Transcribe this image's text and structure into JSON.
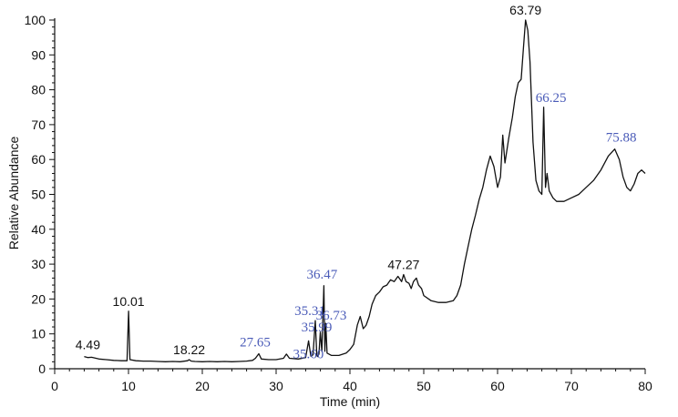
{
  "chart_data": {
    "type": "line",
    "xlabel": "Time (min)",
    "ylabel": "Relative Abundance",
    "xlim": [
      0,
      80
    ],
    "ylim": [
      0,
      100
    ],
    "x_ticks": [
      0,
      10,
      20,
      30,
      40,
      50,
      60,
      70,
      80
    ],
    "y_ticks": [
      0,
      10,
      20,
      30,
      40,
      50,
      60,
      70,
      80,
      90,
      100
    ],
    "grid": false,
    "line_color": "#111111",
    "series": [
      {
        "points": [
          [
            4.0,
            3.5
          ],
          [
            4.5,
            3.2
          ],
          [
            5.0,
            3.3
          ],
          [
            6.0,
            2.8
          ],
          [
            7.0,
            2.6
          ],
          [
            8.0,
            2.4
          ],
          [
            9.0,
            2.3
          ],
          [
            9.8,
            2.3
          ],
          [
            10.01,
            16.5
          ],
          [
            10.2,
            2.6
          ],
          [
            11.0,
            2.3
          ],
          [
            12.0,
            2.2
          ],
          [
            13.0,
            2.2
          ],
          [
            14.0,
            2.1
          ],
          [
            15.0,
            2.0
          ],
          [
            16.0,
            2.1
          ],
          [
            17.0,
            2.0
          ],
          [
            18.0,
            2.3
          ],
          [
            18.22,
            2.6
          ],
          [
            18.5,
            2.2
          ],
          [
            19.0,
            2.1
          ],
          [
            20.0,
            2.0
          ],
          [
            21.0,
            2.1
          ],
          [
            22.0,
            2.0
          ],
          [
            23.0,
            2.1
          ],
          [
            24.0,
            2.0
          ],
          [
            25.0,
            2.1
          ],
          [
            26.0,
            2.2
          ],
          [
            26.8,
            2.4
          ],
          [
            27.2,
            3.0
          ],
          [
            27.65,
            4.3
          ],
          [
            28.0,
            2.8
          ],
          [
            29.0,
            2.6
          ],
          [
            30.0,
            2.6
          ],
          [
            31.0,
            3.0
          ],
          [
            31.4,
            4.2
          ],
          [
            31.8,
            3.0
          ],
          [
            33.0,
            2.8
          ],
          [
            34.0,
            3.2
          ],
          [
            34.4,
            8.0
          ],
          [
            34.7,
            3.6
          ],
          [
            35.0,
            4.0
          ],
          [
            35.31,
            13.8
          ],
          [
            35.5,
            4.0
          ],
          [
            35.6,
            3.5
          ],
          [
            35.8,
            4.2
          ],
          [
            35.99,
            10.5
          ],
          [
            36.2,
            5.0
          ],
          [
            36.47,
            23.8
          ],
          [
            36.6,
            5.0
          ],
          [
            36.73,
            13.0
          ],
          [
            36.9,
            4.5
          ],
          [
            37.5,
            3.8
          ],
          [
            38.5,
            3.8
          ],
          [
            39.5,
            4.5
          ],
          [
            40.0,
            5.5
          ],
          [
            40.5,
            7.0
          ],
          [
            41.0,
            12.5
          ],
          [
            41.4,
            15.0
          ],
          [
            41.8,
            11.5
          ],
          [
            42.2,
            12.5
          ],
          [
            42.6,
            15.0
          ],
          [
            43.0,
            18.5
          ],
          [
            43.5,
            21.0
          ],
          [
            44.0,
            22.0
          ],
          [
            44.5,
            23.5
          ],
          [
            45.0,
            24.0
          ],
          [
            45.5,
            25.5
          ],
          [
            46.0,
            25.0
          ],
          [
            46.5,
            26.5
          ],
          [
            47.0,
            25.0
          ],
          [
            47.27,
            27.0
          ],
          [
            47.6,
            25.0
          ],
          [
            48.0,
            24.5
          ],
          [
            48.3,
            23.0
          ],
          [
            48.6,
            25.0
          ],
          [
            49.0,
            26.0
          ],
          [
            49.3,
            24.0
          ],
          [
            49.7,
            23.0
          ],
          [
            50.0,
            21.0
          ],
          [
            51.0,
            19.5
          ],
          [
            52.0,
            19.0
          ],
          [
            53.0,
            19.0
          ],
          [
            54.0,
            19.5
          ],
          [
            54.5,
            21.0
          ],
          [
            55.0,
            24.0
          ],
          [
            55.5,
            30.0
          ],
          [
            56.0,
            35.0
          ],
          [
            56.5,
            40.0
          ],
          [
            57.0,
            44.0
          ],
          [
            57.5,
            48.5
          ],
          [
            58.0,
            52.0
          ],
          [
            58.5,
            57.0
          ],
          [
            59.0,
            61.0
          ],
          [
            59.5,
            58.0
          ],
          [
            60.0,
            52.0
          ],
          [
            60.4,
            55.0
          ],
          [
            60.7,
            67.0
          ],
          [
            61.0,
            59.0
          ],
          [
            61.5,
            66.0
          ],
          [
            62.0,
            72.0
          ],
          [
            62.4,
            78.0
          ],
          [
            62.8,
            82.0
          ],
          [
            63.2,
            83.0
          ],
          [
            63.5,
            92.0
          ],
          [
            63.79,
            100.0
          ],
          [
            64.1,
            97.0
          ],
          [
            64.4,
            88.0
          ],
          [
            64.8,
            65.0
          ],
          [
            65.2,
            54.0
          ],
          [
            65.6,
            51.0
          ],
          [
            66.0,
            50.0
          ],
          [
            66.25,
            75.0
          ],
          [
            66.5,
            52.0
          ],
          [
            66.7,
            56.0
          ],
          [
            67.0,
            51.0
          ],
          [
            67.5,
            49.0
          ],
          [
            68.0,
            48.0
          ],
          [
            69.0,
            48.0
          ],
          [
            70.0,
            49.0
          ],
          [
            71.0,
            50.0
          ],
          [
            72.0,
            52.0
          ],
          [
            73.0,
            54.0
          ],
          [
            74.0,
            57.0
          ],
          [
            75.0,
            61.0
          ],
          [
            75.88,
            63.0
          ],
          [
            76.5,
            60.0
          ],
          [
            77.0,
            55.0
          ],
          [
            77.5,
            52.0
          ],
          [
            78.0,
            51.0
          ],
          [
            78.5,
            53.0
          ],
          [
            79.0,
            56.0
          ],
          [
            79.5,
            57.0
          ],
          [
            80.0,
            56.0
          ]
        ]
      }
    ],
    "annotations": [
      {
        "text": "4.49",
        "x": 4.49,
        "y": 3.5,
        "color": "#111111",
        "style": "sans"
      },
      {
        "text": "10.01",
        "x": 10.01,
        "y": 16.5,
        "color": "#111111",
        "style": "sans"
      },
      {
        "text": "18.22",
        "x": 18.22,
        "y": 2.6,
        "color": "#111111",
        "style": "sans"
      },
      {
        "text": "27.65",
        "x": 27.65,
        "y": 4.3,
        "color": "#4a5bb8",
        "style": "serif"
      },
      {
        "text": "35.31",
        "x": 35.31,
        "y": 13.8,
        "color": "#4a5bb8",
        "style": "serif"
      },
      {
        "text": "35.60",
        "x": 35.6,
        "y": 3.5,
        "color": "#4a5bb8",
        "style": "serif"
      },
      {
        "text": "35.99",
        "x": 35.99,
        "y": 10.5,
        "color": "#4a5bb8",
        "style": "serif"
      },
      {
        "text": "36.47",
        "x": 36.47,
        "y": 23.8,
        "color": "#4a5bb8",
        "style": "serif"
      },
      {
        "text": "36.73",
        "x": 36.73,
        "y": 13.0,
        "color": "#4a5bb8",
        "style": "serif"
      },
      {
        "text": "47.27",
        "x": 47.27,
        "y": 27.0,
        "color": "#111111",
        "style": "sans"
      },
      {
        "text": "63.79",
        "x": 63.79,
        "y": 100.0,
        "color": "#111111",
        "style": "sans"
      },
      {
        "text": "66.25",
        "x": 66.25,
        "y": 75.0,
        "color": "#4a5bb8",
        "style": "serif"
      },
      {
        "text": "75.88",
        "x": 75.88,
        "y": 63.0,
        "color": "#4a5bb8",
        "style": "serif"
      }
    ]
  }
}
